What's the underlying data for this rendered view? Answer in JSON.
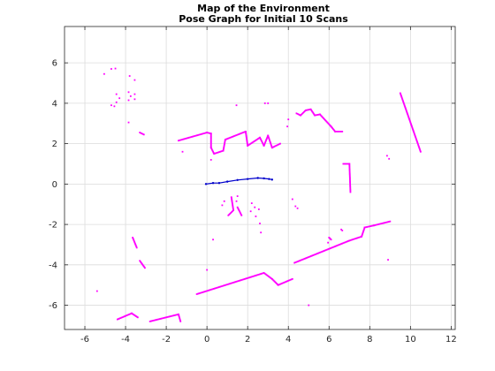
{
  "chart_data": {
    "type": "scatter",
    "title": "Map of the Environment",
    "subtitle": "Pose Graph for Initial 10 Scans",
    "xlabel": "",
    "ylabel": "",
    "xlim": [
      -7,
      12.2
    ],
    "ylim": [
      -7.2,
      7.8
    ],
    "grid": true,
    "x_ticks": [
      -6,
      -4,
      -2,
      0,
      2,
      4,
      6,
      8,
      10,
      12
    ],
    "x_tick_labels": [
      "-6",
      "-4",
      "-2",
      "0",
      "2",
      "4",
      "6",
      "8",
      "10",
      "12"
    ],
    "y_ticks": [
      -6,
      -4,
      -2,
      0,
      2,
      4,
      6
    ],
    "y_tick_labels": [
      "-6",
      "-4",
      "-2",
      "0",
      "2",
      "4",
      "6"
    ],
    "colors": {
      "map_points": "#ff00ff",
      "pose_graph": "#0000cc"
    },
    "series": [
      {
        "kind": "points",
        "segments": [
          [
            [
              -3.3,
              2.55
            ],
            [
              -3.1,
              2.45
            ]
          ],
          [
            [
              -1.4,
              2.15
            ],
            [
              0,
              2.55
            ],
            [
              0.2,
              2.5
            ],
            [
              0.2,
              1.8
            ],
            [
              0.35,
              1.5
            ],
            [
              0.8,
              1.65
            ],
            [
              0.9,
              2.2
            ],
            [
              1.9,
              2.6
            ],
            [
              2.0,
              1.9
            ],
            [
              2.6,
              2.3
            ],
            [
              2.8,
              1.9
            ],
            [
              3.0,
              2.4
            ],
            [
              3.2,
              1.8
            ],
            [
              3.6,
              2.0
            ]
          ],
          [
            [
              4.4,
              3.5
            ],
            [
              4.6,
              3.4
            ],
            [
              4.85,
              3.65
            ],
            [
              5.1,
              3.7
            ],
            [
              5.3,
              3.4
            ],
            [
              5.55,
              3.45
            ],
            [
              6.1,
              2.85
            ],
            [
              6.3,
              2.6
            ],
            [
              6.65,
              2.6
            ]
          ],
          [
            [
              6.7,
              1.0
            ],
            [
              7.0,
              1.0
            ],
            [
              7.05,
              -0.4
            ]
          ],
          [
            [
              9.5,
              4.5
            ],
            [
              10.5,
              1.6
            ]
          ],
          [
            [
              1.2,
              -0.65
            ],
            [
              1.3,
              -1.3
            ],
            [
              1.05,
              -1.55
            ]
          ],
          [
            [
              1.5,
              -1.15
            ],
            [
              1.7,
              -1.55
            ]
          ],
          [
            [
              4.3,
              -3.9
            ],
            [
              7.0,
              -2.8
            ],
            [
              7.6,
              -2.6
            ],
            [
              7.75,
              -2.15
            ],
            [
              8.2,
              -2.05
            ],
            [
              9.0,
              -1.85
            ]
          ],
          [
            [
              -0.5,
              -5.45
            ],
            [
              2.8,
              -4.4
            ],
            [
              3.2,
              -4.7
            ],
            [
              3.5,
              -5.0
            ],
            [
              4.2,
              -4.7
            ]
          ],
          [
            [
              -2.8,
              -6.8
            ],
            [
              -1.4,
              -6.45
            ],
            [
              -1.3,
              -6.8
            ]
          ],
          [
            [
              -4.4,
              -6.7
            ],
            [
              -3.7,
              -6.4
            ],
            [
              -3.4,
              -6.6
            ]
          ],
          [
            [
              -3.3,
              -3.8
            ],
            [
              -3.05,
              -4.15
            ]
          ],
          [
            [
              -3.65,
              -2.65
            ],
            [
              -3.45,
              -3.15
            ]
          ],
          [
            [
              6.0,
              -2.65
            ],
            [
              6.1,
              -2.75
            ]
          ],
          [
            [
              6.6,
              -2.25
            ],
            [
              6.65,
              -2.3
            ]
          ]
        ],
        "clusters": [
          [
            -5.05,
            5.45
          ],
          [
            -4.7,
            5.7
          ],
          [
            -4.5,
            5.72
          ],
          [
            -3.8,
            5.35
          ],
          [
            -3.55,
            5.15
          ],
          [
            -4.45,
            4.45
          ],
          [
            -4.3,
            4.25
          ],
          [
            -4.45,
            4.05
          ],
          [
            -4.7,
            3.9
          ],
          [
            -4.55,
            3.85
          ],
          [
            -3.85,
            4.55
          ],
          [
            -3.75,
            4.35
          ],
          [
            -3.55,
            4.45
          ],
          [
            -3.85,
            4.15
          ],
          [
            -3.55,
            4.2
          ],
          [
            -3.85,
            3.05
          ],
          [
            1.45,
            3.9
          ],
          [
            2.85,
            4.0
          ],
          [
            3.0,
            4.0
          ],
          [
            4.0,
            3.2
          ],
          [
            3.95,
            2.85
          ],
          [
            -1.2,
            1.6
          ],
          [
            0.2,
            1.2
          ],
          [
            8.85,
            1.4
          ],
          [
            8.95,
            1.25
          ],
          [
            0.85,
            -0.85
          ],
          [
            0.75,
            -1.05
          ],
          [
            1.5,
            -0.6
          ],
          [
            1.45,
            -0.85
          ],
          [
            2.2,
            -0.95
          ],
          [
            2.35,
            -1.15
          ],
          [
            2.15,
            -1.35
          ],
          [
            2.4,
            -1.6
          ],
          [
            2.55,
            -1.25
          ],
          [
            2.6,
            -1.95
          ],
          [
            2.65,
            -2.4
          ],
          [
            4.2,
            -0.75
          ],
          [
            4.35,
            -1.1
          ],
          [
            4.45,
            -1.2
          ],
          [
            5.95,
            -2.9
          ],
          [
            0.3,
            -2.75
          ],
          [
            8.9,
            -3.75
          ],
          [
            0.0,
            -4.25
          ],
          [
            -5.4,
            -5.3
          ],
          [
            5.0,
            -6.0
          ]
        ]
      },
      {
        "kind": "pose-line",
        "points": [
          [
            -0.05,
            0.0
          ],
          [
            0.3,
            0.05
          ],
          [
            0.6,
            0.05
          ],
          [
            1.0,
            0.12
          ],
          [
            1.5,
            0.2
          ],
          [
            2.0,
            0.25
          ],
          [
            2.5,
            0.3
          ],
          [
            2.8,
            0.28
          ],
          [
            3.05,
            0.25
          ],
          [
            3.2,
            0.22
          ]
        ]
      }
    ]
  }
}
